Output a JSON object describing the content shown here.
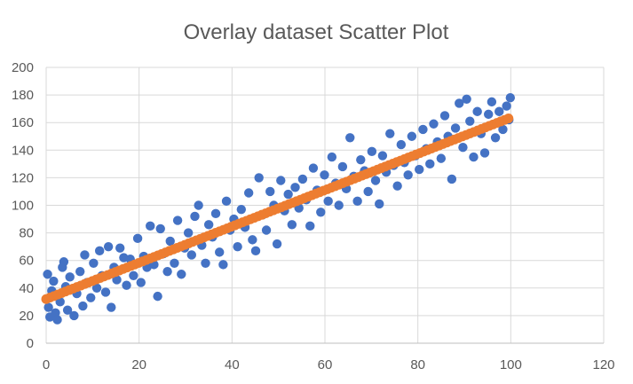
{
  "chart_data": {
    "type": "scatter",
    "title": "Overlay dataset Scatter Plot",
    "xlabel": "",
    "ylabel": "",
    "xlim": [
      0,
      120
    ],
    "ylim": [
      0,
      200
    ],
    "x_ticks": [
      0,
      20,
      40,
      60,
      80,
      100,
      120
    ],
    "y_ticks": [
      0,
      20,
      40,
      60,
      80,
      100,
      120,
      140,
      160,
      180,
      200
    ],
    "grid": true,
    "legend": "none",
    "series": [
      {
        "color": "#4472c4",
        "marker": "circle",
        "points": [
          [
            0.3,
            50
          ],
          [
            0.5,
            26
          ],
          [
            0.8,
            19
          ],
          [
            1.2,
            38
          ],
          [
            1.6,
            45
          ],
          [
            2.0,
            22
          ],
          [
            2.4,
            17
          ],
          [
            3.0,
            30
          ],
          [
            3.5,
            55
          ],
          [
            3.8,
            59
          ],
          [
            4.2,
            41
          ],
          [
            4.6,
            24
          ],
          [
            5.1,
            48
          ],
          [
            6.0,
            20
          ],
          [
            6.6,
            36
          ],
          [
            7.3,
            52
          ],
          [
            7.9,
            27
          ],
          [
            8.3,
            64
          ],
          [
            8.8,
            44
          ],
          [
            9.6,
            33
          ],
          [
            10.2,
            58
          ],
          [
            10.9,
            40
          ],
          [
            11.5,
            67
          ],
          [
            12.0,
            49
          ],
          [
            12.8,
            37
          ],
          [
            13.4,
            70
          ],
          [
            14.0,
            26
          ],
          [
            14.6,
            55
          ],
          [
            15.2,
            46
          ],
          [
            15.9,
            69
          ],
          [
            16.7,
            62
          ],
          [
            17.3,
            42
          ],
          [
            18.1,
            61
          ],
          [
            18.8,
            49
          ],
          [
            19.7,
            76
          ],
          [
            20.4,
            44
          ],
          [
            21.0,
            63
          ],
          [
            21.7,
            55
          ],
          [
            22.4,
            85
          ],
          [
            23.2,
            57
          ],
          [
            24.0,
            34
          ],
          [
            24.6,
            83
          ],
          [
            25.3,
            65
          ],
          [
            26.1,
            52
          ],
          [
            26.7,
            74
          ],
          [
            27.6,
            58
          ],
          [
            28.3,
            89
          ],
          [
            29.1,
            50
          ],
          [
            29.8,
            69
          ],
          [
            30.6,
            80
          ],
          [
            31.3,
            64
          ],
          [
            32.0,
            92
          ],
          [
            32.8,
            100
          ],
          [
            33.5,
            71
          ],
          [
            34.3,
            58
          ],
          [
            35.0,
            86
          ],
          [
            35.8,
            77
          ],
          [
            36.5,
            94
          ],
          [
            37.3,
            66
          ],
          [
            38.1,
            57
          ],
          [
            38.8,
            103
          ],
          [
            39.6,
            82
          ],
          [
            40.4,
            90
          ],
          [
            41.2,
            70
          ],
          [
            42.0,
            97
          ],
          [
            42.8,
            84
          ],
          [
            43.6,
            109
          ],
          [
            44.4,
            75
          ],
          [
            45.1,
            67
          ],
          [
            45.8,
            120
          ],
          [
            46.6,
            93
          ],
          [
            47.4,
            82
          ],
          [
            48.2,
            110
          ],
          [
            49.0,
            100
          ],
          [
            49.7,
            72
          ],
          [
            50.5,
            118
          ],
          [
            51.3,
            96
          ],
          [
            52.1,
            108
          ],
          [
            52.9,
            86
          ],
          [
            53.6,
            113
          ],
          [
            54.4,
            98
          ],
          [
            55.2,
            119
          ],
          [
            56.0,
            104
          ],
          [
            56.8,
            85
          ],
          [
            57.5,
            127
          ],
          [
            58.3,
            111
          ],
          [
            59.1,
            95
          ],
          [
            59.9,
            122
          ],
          [
            60.7,
            103
          ],
          [
            61.5,
            135
          ],
          [
            62.3,
            116
          ],
          [
            63.0,
            100
          ],
          [
            63.8,
            128
          ],
          [
            64.6,
            112
          ],
          [
            65.4,
            149
          ],
          [
            66.2,
            121
          ],
          [
            67.0,
            103
          ],
          [
            67.7,
            133
          ],
          [
            68.5,
            125
          ],
          [
            69.3,
            110
          ],
          [
            70.1,
            139
          ],
          [
            70.9,
            118
          ],
          [
            71.7,
            101
          ],
          [
            72.4,
            136
          ],
          [
            73.2,
            124
          ],
          [
            74.0,
            152
          ],
          [
            74.8,
            129
          ],
          [
            75.6,
            114
          ],
          [
            76.4,
            144
          ],
          [
            77.1,
            131
          ],
          [
            77.9,
            122
          ],
          [
            78.7,
            150
          ],
          [
            79.5,
            136
          ],
          [
            80.3,
            126
          ],
          [
            81.1,
            155
          ],
          [
            81.8,
            141
          ],
          [
            82.6,
            130
          ],
          [
            83.4,
            159
          ],
          [
            84.2,
            146
          ],
          [
            85.0,
            134
          ],
          [
            85.8,
            165
          ],
          [
            86.5,
            150
          ],
          [
            87.3,
            119
          ],
          [
            88.1,
            156
          ],
          [
            88.9,
            174
          ],
          [
            89.7,
            142
          ],
          [
            90.5,
            177
          ],
          [
            91.2,
            161
          ],
          [
            92.0,
            135
          ],
          [
            92.8,
            168
          ],
          [
            93.6,
            152
          ],
          [
            94.4,
            138
          ],
          [
            95.2,
            166
          ],
          [
            95.9,
            175
          ],
          [
            96.7,
            149
          ],
          [
            97.5,
            168
          ],
          [
            98.3,
            155
          ],
          [
            99.1,
            172
          ],
          [
            99.6,
            162
          ],
          [
            99.9,
            178
          ]
        ]
      },
      {
        "color": "#ed7d31",
        "marker": "circle",
        "line": {
          "x": [
            0,
            99.5
          ],
          "y": [
            32,
            163
          ]
        }
      }
    ]
  }
}
